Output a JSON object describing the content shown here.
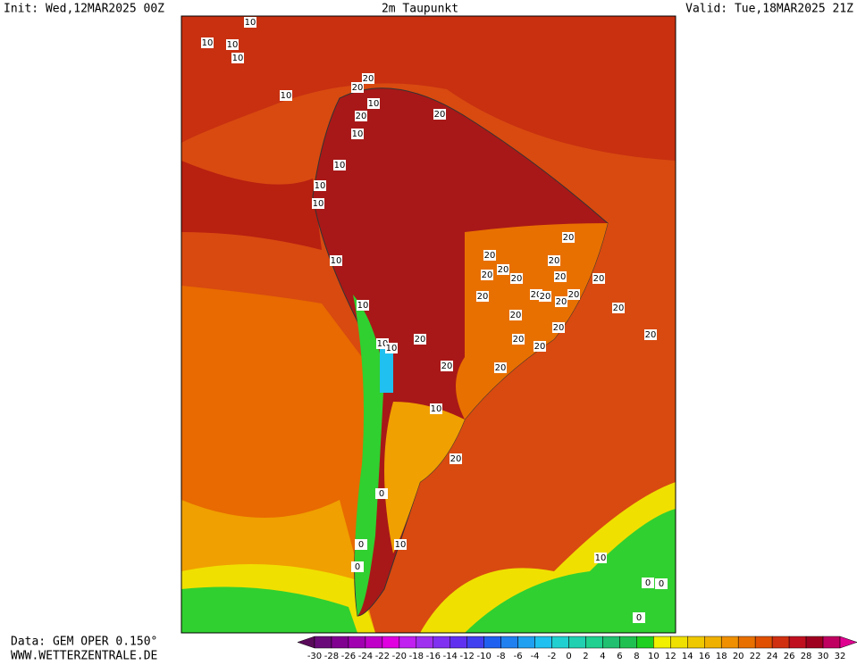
{
  "header": {
    "init": "Init: Wed,12MAR2025 00Z",
    "title": "2m Taupunkt",
    "valid": "Valid: Tue,18MAR2025 21Z"
  },
  "footer": {
    "data": "Data: GEM OPER 0.150°",
    "site": "WWW.WETTERZENTRALE.DE"
  },
  "colorbar": {
    "ticks": [
      -30,
      -28,
      -26,
      -24,
      -22,
      -20,
      -18,
      -16,
      -14,
      -12,
      -10,
      -8,
      -6,
      -4,
      -2,
      0,
      2,
      4,
      6,
      8,
      10,
      12,
      14,
      16,
      18,
      20,
      22,
      24,
      26,
      28,
      30,
      32
    ],
    "colors": [
      "#5a0a5a",
      "#6a0a7a",
      "#800090",
      "#a000b0",
      "#c000c8",
      "#e000e0",
      "#c020f0",
      "#a030f0",
      "#8030f0",
      "#6030f0",
      "#4040f0",
      "#2060f0",
      "#2080f0",
      "#20a0f0",
      "#20c0f0",
      "#20d0d0",
      "#20d0b0",
      "#20d090",
      "#20c070",
      "#20c050",
      "#20d020",
      "#f0f000",
      "#f0e000",
      "#f0c800",
      "#f0b000",
      "#f09000",
      "#e87000",
      "#e05000",
      "#d03010",
      "#c01020",
      "#a00020",
      "#c00060",
      "#e00090"
    ]
  },
  "contour_labels": [
    10,
    10,
    10,
    10,
    10,
    20,
    10,
    20,
    10,
    10,
    10,
    10,
    20,
    20,
    20,
    20,
    20,
    20,
    20,
    20,
    20,
    20,
    20,
    20,
    20,
    20,
    20,
    10,
    10,
    20,
    20,
    20,
    20,
    20,
    20,
    10,
    10,
    10,
    20,
    20,
    0,
    0,
    0,
    10,
    10,
    0,
    0,
    0,
    20,
    20
  ]
}
